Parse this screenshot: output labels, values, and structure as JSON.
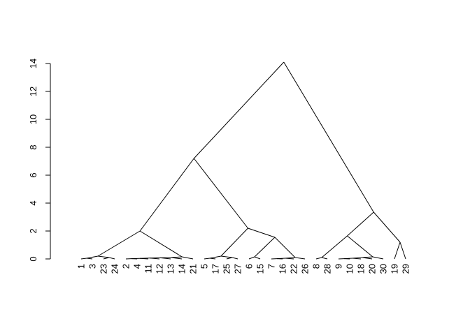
{
  "chart_data": {
    "type": "dendrogram",
    "title": "",
    "xlabel": "",
    "ylabel": "",
    "ylim": [
      0,
      14
    ],
    "yticks": [
      0,
      2,
      4,
      6,
      8,
      10,
      12,
      14
    ],
    "leaf_order": [
      "1",
      "3",
      "23",
      "24",
      "2",
      "4",
      "11",
      "12",
      "13",
      "14",
      "21",
      "5",
      "17",
      "25",
      "27",
      "6",
      "15",
      "7",
      "16",
      "22",
      "26",
      "8",
      "28",
      "9",
      "10",
      "18",
      "20",
      "30",
      "19",
      "29"
    ],
    "merges": [
      {
        "left": "L:1",
        "right": "L:3",
        "height": 0.05
      },
      {
        "left": "L:23",
        "right": "L:24",
        "height": 0.1
      },
      {
        "left": "M:0",
        "right": "M:1",
        "height": 0.2
      },
      {
        "left": "L:2",
        "right": "L:4",
        "height": 0.02
      },
      {
        "left": "M:3",
        "right": "L:11",
        "height": 0.04
      },
      {
        "left": "M:4",
        "right": "L:12",
        "height": 0.06
      },
      {
        "left": "M:5",
        "right": "L:13",
        "height": 0.08
      },
      {
        "left": "M:6",
        "right": "L:14",
        "height": 0.1
      },
      {
        "left": "M:7",
        "right": "L:21",
        "height": 0.15
      },
      {
        "left": "M:2",
        "right": "M:8",
        "height": 2.0
      },
      {
        "left": "L:5",
        "right": "L:17",
        "height": 0.05
      },
      {
        "left": "L:25",
        "right": "L:27",
        "height": 0.1
      },
      {
        "left": "M:10",
        "right": "M:11",
        "height": 0.2
      },
      {
        "left": "L:6",
        "right": "L:15",
        "height": 0.15
      },
      {
        "left": "L:7",
        "right": "L:16",
        "height": 0.02
      },
      {
        "left": "M:14",
        "right": "L:22",
        "height": 0.05
      },
      {
        "left": "M:15",
        "right": "L:26",
        "height": 0.1
      },
      {
        "left": "M:13",
        "right": "M:16",
        "height": 1.55
      },
      {
        "left": "M:12",
        "right": "M:17",
        "height": 2.2
      },
      {
        "left": "M:9",
        "right": "M:18",
        "height": 7.2
      },
      {
        "left": "L:8",
        "right": "L:28",
        "height": 0.1
      },
      {
        "left": "L:9",
        "right": "L:10",
        "height": 0.02
      },
      {
        "left": "M:21",
        "right": "L:18",
        "height": 0.05
      },
      {
        "left": "M:22",
        "right": "L:20",
        "height": 0.1
      },
      {
        "left": "M:23",
        "right": "L:30",
        "height": 0.15
      },
      {
        "left": "M:20",
        "right": "M:24",
        "height": 1.65
      },
      {
        "left": "L:19",
        "right": "L:29",
        "height": 1.2
      },
      {
        "left": "M:25",
        "right": "M:26",
        "height": 3.35
      },
      {
        "left": "M:19",
        "right": "M:27",
        "height": 14.1
      }
    ]
  }
}
